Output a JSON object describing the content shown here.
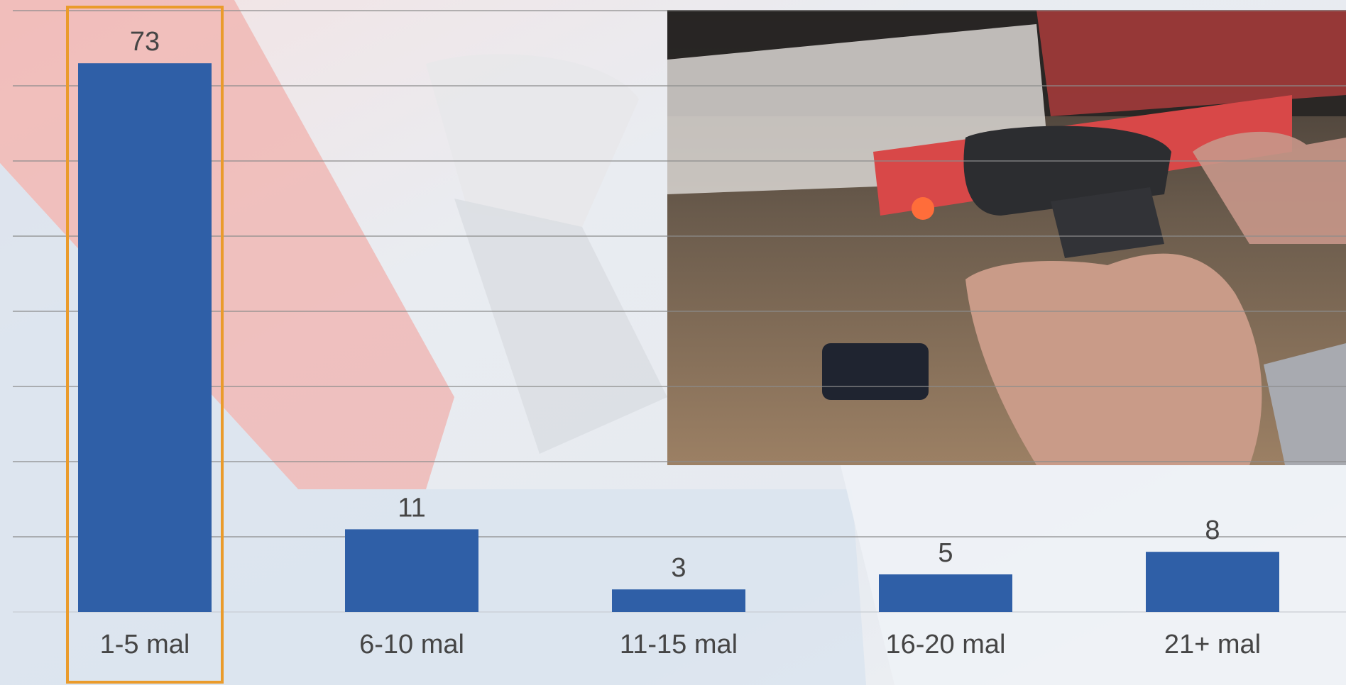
{
  "chart_data": {
    "type": "bar",
    "categories": [
      "1-5 mal",
      "6-10 mal",
      "11-15 mal",
      "16-20 mal",
      "21+ mal"
    ],
    "values": [
      73,
      11,
      3,
      5,
      8
    ],
    "data_labels": [
      "73",
      "11",
      "3",
      "5",
      "8"
    ],
    "title": "",
    "xlabel": "",
    "ylabel": "",
    "ylim": [
      0,
      80
    ],
    "grid": true,
    "highlighted_category": "1-5 mal",
    "colors": {
      "bar": "#2f5fa7",
      "highlight": "#ea9b2b",
      "grid": "#8c8c8c",
      "text": "#454545"
    }
  },
  "photo": {
    "icon": "barcode-scanner-photo"
  },
  "background": {
    "icon": "handheld-scanner-background-photo"
  }
}
